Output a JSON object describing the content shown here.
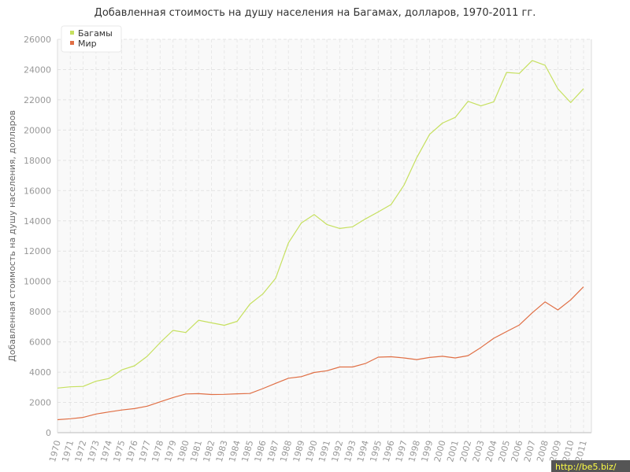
{
  "chart_data": {
    "type": "line",
    "title": "Добавленная стоимость на душу населения на Багамах, долларов, 1970-2011 гг.",
    "xlabel": "",
    "ylabel": "Добавленная стоимость на душу населения, долларов",
    "ylim": [
      0,
      26000
    ],
    "yticks": [
      0,
      2000,
      4000,
      6000,
      8000,
      10000,
      12000,
      14000,
      16000,
      18000,
      20000,
      22000,
      24000,
      26000
    ],
    "x": [
      "1970",
      "1971",
      "1972",
      "1973",
      "1974",
      "1975",
      "1976",
      "1977",
      "1978",
      "1979",
      "1980",
      "1981",
      "1982",
      "1983",
      "1984",
      "1985",
      "1986",
      "1987",
      "1988",
      "1989",
      "1990",
      "1991",
      "1992",
      "1993",
      "1994",
      "1995",
      "1996",
      "1997",
      "1998",
      "1999",
      "2000",
      "2001",
      "2002",
      "2003",
      "2004",
      "2005",
      "2006",
      "2007",
      "2008",
      "2009",
      "2010",
      "2011"
    ],
    "grid": true,
    "legend_position": "top-left",
    "series": [
      {
        "name": "Багамы",
        "color": "#c6e05f",
        "values": [
          2950,
          3030,
          3060,
          3400,
          3580,
          4150,
          4420,
          5050,
          5950,
          6760,
          6620,
          7430,
          7260,
          7100,
          7360,
          8500,
          9170,
          10200,
          12550,
          13860,
          14420,
          13760,
          13500,
          13610,
          14130,
          14590,
          15080,
          16350,
          18180,
          19720,
          20460,
          20840,
          21900,
          21600,
          21870,
          23810,
          23750,
          24600,
          24290,
          22730,
          21820,
          22740
        ]
      },
      {
        "name": "Мир",
        "color": "#e06f45",
        "values": [
          860,
          920,
          1010,
          1230,
          1370,
          1500,
          1590,
          1750,
          2040,
          2320,
          2560,
          2580,
          2520,
          2530,
          2570,
          2590,
          2910,
          3260,
          3600,
          3700,
          3980,
          4090,
          4340,
          4340,
          4570,
          4990,
          5020,
          4940,
          4830,
          4970,
          5050,
          4940,
          5090,
          5630,
          6240,
          6680,
          7120,
          7920,
          8640,
          8110,
          8780,
          9640
        ]
      }
    ]
  },
  "watermark": "http://be5.biz/"
}
